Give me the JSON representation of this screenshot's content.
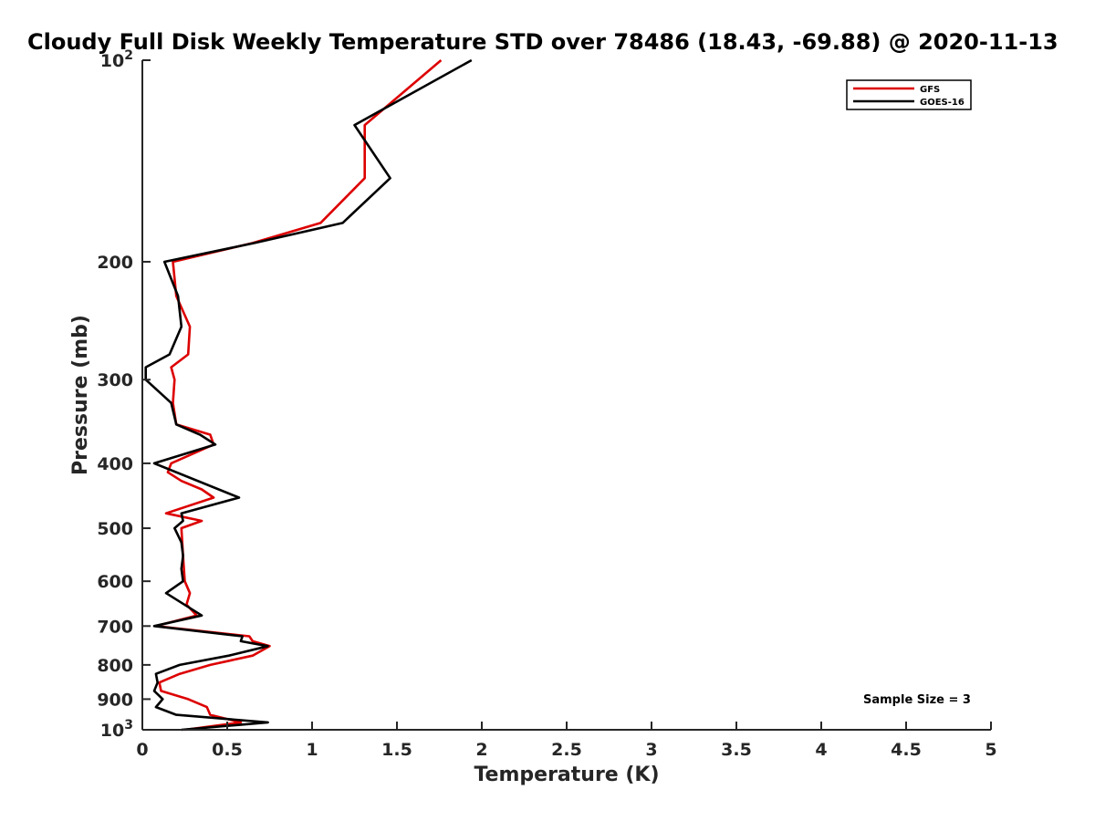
{
  "chart_data": {
    "type": "line",
    "title": "Cloudy Full Disk Weekly Temperature STD over 78486 (18.43, -69.88) @ 2020-11-13",
    "xlabel": "Temperature (K)",
    "ylabel": "Pressure (mb)",
    "xlim": [
      0,
      5
    ],
    "ylim": [
      100,
      1000
    ],
    "yscale": "log",
    "y_reversed": true,
    "x_ticks": [
      "0",
      "0.5",
      "1",
      "1.5",
      "2",
      "2.5",
      "3",
      "3.5",
      "4",
      "4.5",
      "5"
    ],
    "y_ticks": [
      {
        "value": 100,
        "base": "10",
        "exp": "2"
      },
      {
        "value": 200,
        "label": "200"
      },
      {
        "value": 300,
        "label": "300"
      },
      {
        "value": 400,
        "label": "400"
      },
      {
        "value": 500,
        "label": "500"
      },
      {
        "value": 600,
        "label": "600"
      },
      {
        "value": 700,
        "label": "700"
      },
      {
        "value": 800,
        "label": "800"
      },
      {
        "value": 900,
        "label": "900"
      },
      {
        "value": 1000,
        "base": "10",
        "exp": "3"
      }
    ],
    "grid": false,
    "legend_position": "top-right",
    "annotation": "Sample Size = 3",
    "series": [
      {
        "name": "GFS",
        "color": "#dd0000",
        "points": [
          [
            1.76,
            100
          ],
          [
            1.31,
            125
          ],
          [
            1.31,
            150
          ],
          [
            1.05,
            175
          ],
          [
            0.65,
            187.5
          ],
          [
            0.18,
            200
          ],
          [
            0.2,
            225
          ],
          [
            0.28,
            250
          ],
          [
            0.27,
            275
          ],
          [
            0.17,
            287.5
          ],
          [
            0.19,
            300
          ],
          [
            0.18,
            325
          ],
          [
            0.2,
            350
          ],
          [
            0.4,
            362.5
          ],
          [
            0.42,
            375
          ],
          [
            0.17,
            400
          ],
          [
            0.15,
            412.5
          ],
          [
            0.23,
            425
          ],
          [
            0.35,
            437.5
          ],
          [
            0.42,
            450
          ],
          [
            0.14,
            475
          ],
          [
            0.35,
            487.5
          ],
          [
            0.23,
            500
          ],
          [
            0.24,
            550
          ],
          [
            0.25,
            600
          ],
          [
            0.28,
            625
          ],
          [
            0.26,
            650
          ],
          [
            0.32,
            675
          ],
          [
            0.08,
            700
          ],
          [
            0.63,
            725
          ],
          [
            0.65,
            737.5
          ],
          [
            0.75,
            750
          ],
          [
            0.65,
            775
          ],
          [
            0.4,
            800
          ],
          [
            0.22,
            825
          ],
          [
            0.1,
            850
          ],
          [
            0.11,
            875
          ],
          [
            0.27,
            900
          ],
          [
            0.38,
            925
          ],
          [
            0.4,
            950
          ],
          [
            0.58,
            975
          ],
          [
            0.25,
            1000
          ]
        ]
      },
      {
        "name": "GOES-16",
        "color": "#000000",
        "points": [
          [
            1.94,
            100
          ],
          [
            1.25,
            125
          ],
          [
            1.46,
            150
          ],
          [
            1.18,
            175
          ],
          [
            0.66,
            187.5
          ],
          [
            0.13,
            200
          ],
          [
            0.21,
            225
          ],
          [
            0.23,
            250
          ],
          [
            0.16,
            275
          ],
          [
            0.02,
            287.5
          ],
          [
            0.02,
            300
          ],
          [
            0.17,
            325
          ],
          [
            0.2,
            350
          ],
          [
            0.34,
            362.5
          ],
          [
            0.43,
            375
          ],
          [
            0.07,
            400
          ],
          [
            0.57,
            450
          ],
          [
            0.23,
            475
          ],
          [
            0.24,
            487.5
          ],
          [
            0.19,
            500
          ],
          [
            0.23,
            525
          ],
          [
            0.24,
            550
          ],
          [
            0.23,
            575
          ],
          [
            0.24,
            600
          ],
          [
            0.14,
            625
          ],
          [
            0.35,
            675
          ],
          [
            0.07,
            700
          ],
          [
            0.59,
            725
          ],
          [
            0.58,
            737.5
          ],
          [
            0.74,
            750
          ],
          [
            0.51,
            775
          ],
          [
            0.22,
            800
          ],
          [
            0.08,
            825
          ],
          [
            0.09,
            850
          ],
          [
            0.07,
            875
          ],
          [
            0.12,
            900
          ],
          [
            0.08,
            925
          ],
          [
            0.2,
            950
          ],
          [
            0.74,
            975
          ],
          [
            0.23,
            1000
          ]
        ]
      }
    ]
  }
}
